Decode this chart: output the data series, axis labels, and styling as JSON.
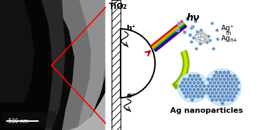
{
  "figure_width": 3.73,
  "figure_height": 1.89,
  "dpi": 100,
  "bg_color": "#ffffff",
  "tio2_label": "TiO",
  "tio2_sub": "2",
  "hv_label": "hν",
  "hplus_label": "h⁺",
  "eminus_label": "e⁻",
  "ag_ion_label1": "Ag⁺",
  "ag_ion_label2": "Ag",
  "ag_ion_sub": "m",
  "ag_ion_sup": "n+",
  "ag_nano_label": "Ag nanoparticles",
  "scale_bar_label": "500 nm",
  "dot_blue": "#6699cc",
  "nanoparticle_blue": "#5b8ec4",
  "green_dark": "#7ab800",
  "green_light": "#c8e600"
}
